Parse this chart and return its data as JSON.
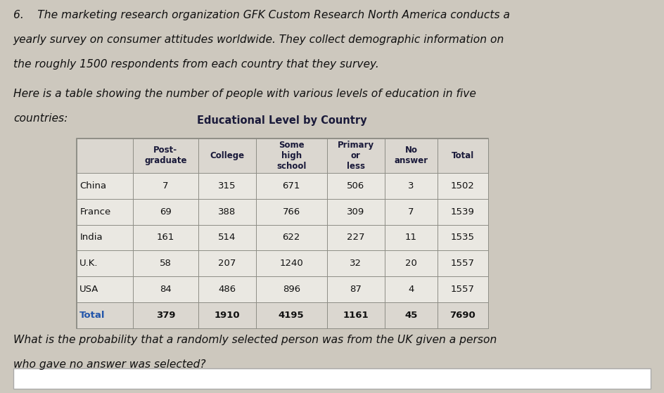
{
  "paragraph1_line1": "6.    The marketing research organization GFK Custom Research North America conducts a",
  "paragraph1_line2": "yearly survey on consumer attitudes worldwide. They collect demographic information on",
  "paragraph1_line3": "the roughly 1500 respondents from each country that they survey.",
  "paragraph2_line1": "Here is a table showing the number of people with various levels of education in five",
  "paragraph2_line2": "countries:",
  "table_title": "Educational Level by Country",
  "row_labels": [
    "China",
    "France",
    "India",
    "U.K.",
    "USA",
    "Total"
  ],
  "data": [
    [
      7,
      315,
      671,
      506,
      3,
      1502
    ],
    [
      69,
      388,
      766,
      309,
      7,
      1539
    ],
    [
      161,
      514,
      622,
      227,
      11,
      1535
    ],
    [
      58,
      207,
      1240,
      32,
      20,
      1557
    ],
    [
      84,
      486,
      896,
      87,
      4,
      1557
    ],
    [
      379,
      1910,
      4195,
      1161,
      45,
      7690
    ]
  ],
  "question_line1": "What is the probability that a randomly selected person was from the UK given a person",
  "question_line2": "who gave no answer was selected?",
  "bg_color": "#cdc8be",
  "table_outer_bg": "#b8b4ac",
  "table_header_bg": "#dbd7d0",
  "table_data_bg": "#eae8e2",
  "table_total_row_bg": "#dbd7d0",
  "table_border_color": "#888880",
  "text_color": "#111111",
  "header_text_color": "#1a1a3a",
  "total_label_color": "#2255aa",
  "answer_box_bg": "#ffffff",
  "answer_box_border": "#aaaaaa"
}
